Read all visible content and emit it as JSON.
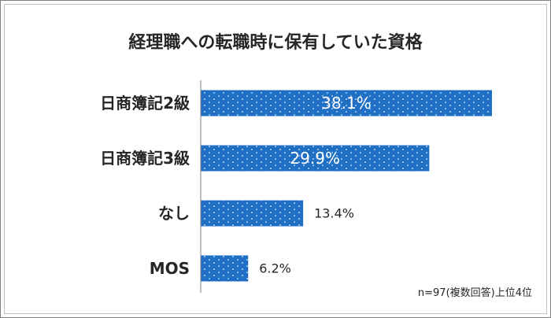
{
  "title": "経理職への転職時に保有していた資格",
  "note": "n=97(複数回答)上位4位",
  "colors": {
    "bar": "#1f6fc5",
    "dots": "#ffffff",
    "axis": "#7f7f7f",
    "text": "#262626"
  },
  "chart_data": {
    "type": "bar",
    "orientation": "horizontal",
    "categories": [
      "日商簿記2級",
      "日商簿記3級",
      "なし",
      "MOS"
    ],
    "values": [
      38.1,
      29.9,
      13.4,
      6.2
    ],
    "value_labels": [
      "38.1%",
      "29.9%",
      "13.4%",
      "6.2%"
    ],
    "label_position": [
      "inside",
      "inside",
      "outside",
      "outside"
    ],
    "title": "経理職への転職時に保有していた資格",
    "xlabel": "",
    "ylabel": "",
    "xlim": [
      0,
      40
    ],
    "grid": false,
    "legend": "none"
  }
}
